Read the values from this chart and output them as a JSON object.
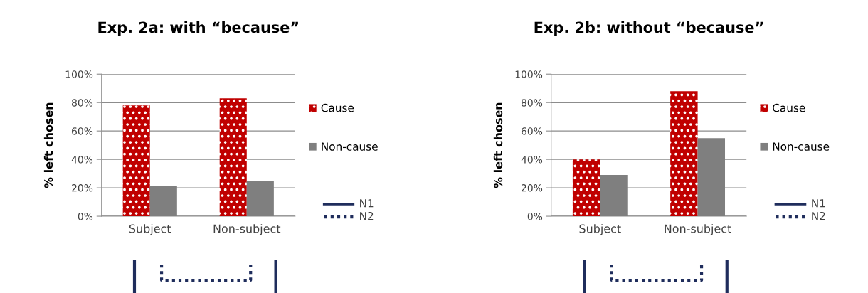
{
  "chart_data": [
    {
      "type": "bar",
      "title": "Exp. 2a: with “because”",
      "ylabel": "% left chosen",
      "categories": [
        "Subject",
        "Non-subject"
      ],
      "series": [
        {
          "name": "Cause",
          "color": "#c00000",
          "values": [
            78,
            83
          ]
        },
        {
          "name": "Non-cause",
          "color": "#7f7f7f",
          "values": [
            21,
            25
          ]
        }
      ],
      "ylim": [
        0,
        100
      ],
      "yticks": [
        {
          "value": 0,
          "label": "0%"
        },
        {
          "value": 20,
          "label": "20%"
        },
        {
          "value": 40,
          "label": "40%"
        },
        {
          "value": 60,
          "label": "60%"
        },
        {
          "value": 80,
          "label": "80%"
        },
        {
          "value": 100,
          "label": "100%"
        }
      ],
      "grid": "y",
      "legend": "right",
      "annotations": [
        "N1",
        "N2"
      ]
    },
    {
      "type": "bar",
      "title": "Exp. 2b: without “because”",
      "ylabel": "% left chosen",
      "categories": [
        "Subject",
        "Non-subject"
      ],
      "series": [
        {
          "name": "Cause",
          "color": "#c00000",
          "values": [
            40,
            88
          ]
        },
        {
          "name": "Non-cause",
          "color": "#7f7f7f",
          "values": [
            29,
            55
          ]
        }
      ],
      "ylim": [
        0,
        100
      ],
      "yticks": [
        {
          "value": 0,
          "label": "0%"
        },
        {
          "value": 20,
          "label": "20%"
        },
        {
          "value": 40,
          "label": "40%"
        },
        {
          "value": 60,
          "label": "60%"
        },
        {
          "value": 80,
          "label": "80%"
        },
        {
          "value": 100,
          "label": "100%"
        }
      ],
      "grid": "y",
      "legend": "right",
      "annotations": [
        "N1",
        "N2"
      ]
    }
  ]
}
